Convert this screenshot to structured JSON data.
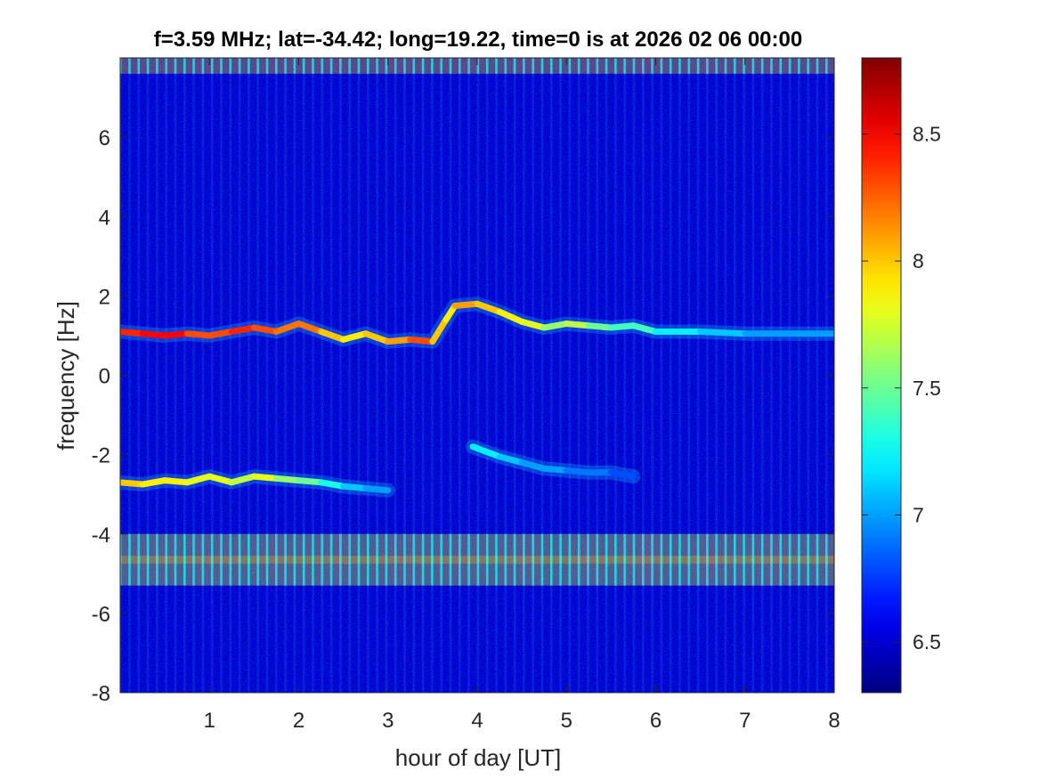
{
  "chart_data": {
    "type": "heatmap",
    "title": "f=3.59 MHz;  lat=-34.42; long=19.22, time=0 is at 2026 02 06 00:00",
    "xlabel": "hour of day [UT]",
    "ylabel": "frequency [Hz]",
    "xlim": [
      0,
      8
    ],
    "ylim": [
      -8,
      8
    ],
    "x_ticks": [
      1,
      2,
      3,
      4,
      5,
      6,
      7,
      8
    ],
    "x_tick_labels": [
      "1",
      "2",
      "3",
      "4",
      "5",
      "6",
      "7",
      "8"
    ],
    "y_ticks": [
      -8,
      -6,
      -4,
      -2,
      0,
      2,
      4,
      6
    ],
    "y_tick_labels": [
      "-8",
      "-6",
      "-4",
      "-2",
      "0",
      "2",
      "4",
      "6"
    ],
    "colormap": "jet",
    "colorbar": {
      "clim": [
        6.3,
        8.8
      ],
      "ticks": [
        6.5,
        7,
        7.5,
        8,
        8.5
      ],
      "tick_labels": [
        "6.5",
        "7",
        "7.5",
        "8",
        "8.5"
      ]
    },
    "background_level": 6.5,
    "traces": [
      {
        "name": "upper trace",
        "points": [
          [
            0.0,
            1.1
          ],
          [
            0.25,
            1.05
          ],
          [
            0.5,
            1.0
          ],
          [
            0.75,
            1.05
          ],
          [
            1.0,
            1.0
          ],
          [
            1.25,
            1.1
          ],
          [
            1.5,
            1.2
          ],
          [
            1.75,
            1.1
          ],
          [
            2.0,
            1.3
          ],
          [
            2.25,
            1.1
          ],
          [
            2.5,
            0.9
          ],
          [
            2.75,
            1.05
          ],
          [
            3.0,
            0.85
          ],
          [
            3.25,
            0.9
          ],
          [
            3.5,
            0.85
          ],
          [
            3.65,
            1.4
          ],
          [
            3.75,
            1.75
          ],
          [
            4.0,
            1.8
          ],
          [
            4.25,
            1.6
          ],
          [
            4.5,
            1.35
          ],
          [
            4.75,
            1.2
          ],
          [
            5.0,
            1.3
          ],
          [
            5.25,
            1.25
          ],
          [
            5.5,
            1.2
          ],
          [
            5.75,
            1.25
          ],
          [
            6.0,
            1.1
          ],
          [
            6.5,
            1.1
          ],
          [
            7.0,
            1.05
          ],
          [
            7.5,
            1.05
          ],
          [
            8.0,
            1.05
          ]
        ],
        "intensity": [
          8.4,
          8.5,
          8.5,
          8.3,
          8.3,
          8.4,
          8.3,
          8.2,
          8.2,
          8.0,
          7.9,
          8.0,
          8.1,
          8.3,
          8.0,
          7.9,
          8.1,
          8.0,
          7.9,
          7.8,
          7.6,
          7.7,
          7.5,
          7.4,
          7.4,
          7.2,
          7.1,
          7.0,
          7.0,
          7.0
        ]
      },
      {
        "name": "lower trace",
        "points": [
          [
            0.0,
            -2.7
          ],
          [
            0.25,
            -2.75
          ],
          [
            0.5,
            -2.65
          ],
          [
            0.75,
            -2.7
          ],
          [
            1.0,
            -2.55
          ],
          [
            1.25,
            -2.7
          ],
          [
            1.5,
            -2.55
          ],
          [
            1.75,
            -2.6
          ],
          [
            2.0,
            -2.65
          ],
          [
            2.25,
            -2.7
          ],
          [
            2.5,
            -2.8
          ],
          [
            2.75,
            -2.85
          ],
          [
            3.0,
            -2.9
          ]
        ],
        "intensity": [
          8.0,
          7.9,
          7.9,
          7.8,
          7.8,
          7.7,
          7.8,
          7.6,
          7.5,
          7.3,
          7.1,
          7.0,
          7.0
        ]
      },
      {
        "name": "lower trace (later)",
        "points": [
          [
            3.95,
            -1.8
          ],
          [
            4.25,
            -2.05
          ],
          [
            4.5,
            -2.2
          ],
          [
            4.75,
            -2.35
          ],
          [
            5.0,
            -2.4
          ],
          [
            5.25,
            -2.45
          ],
          [
            5.5,
            -2.45
          ],
          [
            5.75,
            -2.55
          ]
        ],
        "intensity": [
          7.2,
          7.1,
          7.0,
          7.0,
          6.9,
          6.9,
          6.8,
          6.8
        ]
      }
    ],
    "bands": [
      {
        "name": "top band",
        "y_range": [
          7.6,
          8
        ],
        "level": 8.0
      },
      {
        "name": "comb band",
        "y_range": [
          -5.3,
          -4.0
        ],
        "level": 7.8
      },
      {
        "name": "comb line",
        "y_range": [
          -4.75,
          -4.55
        ],
        "level": 8.1
      }
    ]
  }
}
